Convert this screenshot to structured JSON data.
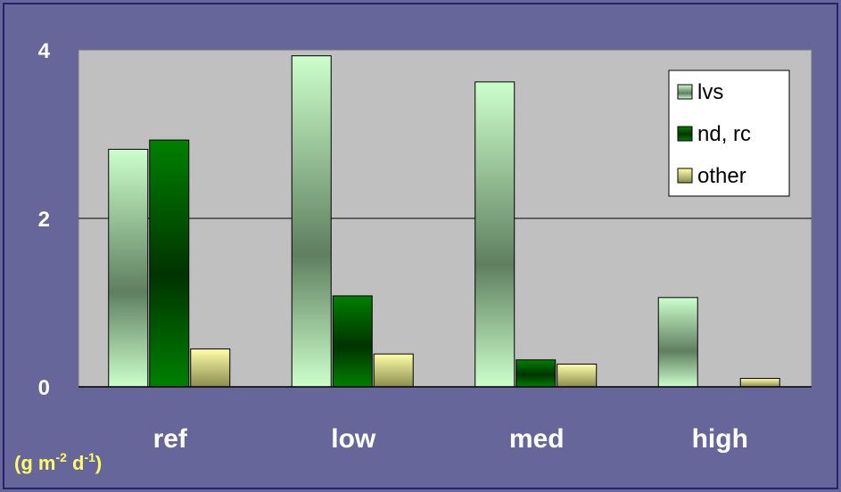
{
  "chart_data": {
    "type": "bar",
    "categories": [
      "ref",
      "low",
      "med",
      "high"
    ],
    "series": [
      {
        "name": "lvs",
        "values": [
          2.82,
          3.93,
          3.62,
          1.06
        ]
      },
      {
        "name": "nd, rc",
        "values": [
          2.93,
          1.08,
          0.32,
          0
        ]
      },
      {
        "name": "other",
        "values": [
          0.45,
          0.39,
          0.27,
          0.1
        ]
      }
    ],
    "yticks": [
      "0",
      "2",
      "4"
    ],
    "ylim": [
      0,
      4
    ],
    "unit_label": {
      "main": "(g m",
      "exp1": "-2",
      "mid": " d",
      "exp2": "-1",
      "end": ")"
    },
    "grid": true,
    "legend_position": "top-right",
    "colors": {
      "plot_bg": "#c0c0c0",
      "page_bg": "#66669a",
      "lvs_light": "#ccffcc",
      "lvs_dark": "#5f7f5f",
      "nd_light": "#008000",
      "nd_dark": "#003300",
      "other_light": "#ffffaa",
      "other_dark": "#8c8c4e",
      "tick_text": "#ffffff",
      "unit_text": "#ffff66"
    }
  }
}
